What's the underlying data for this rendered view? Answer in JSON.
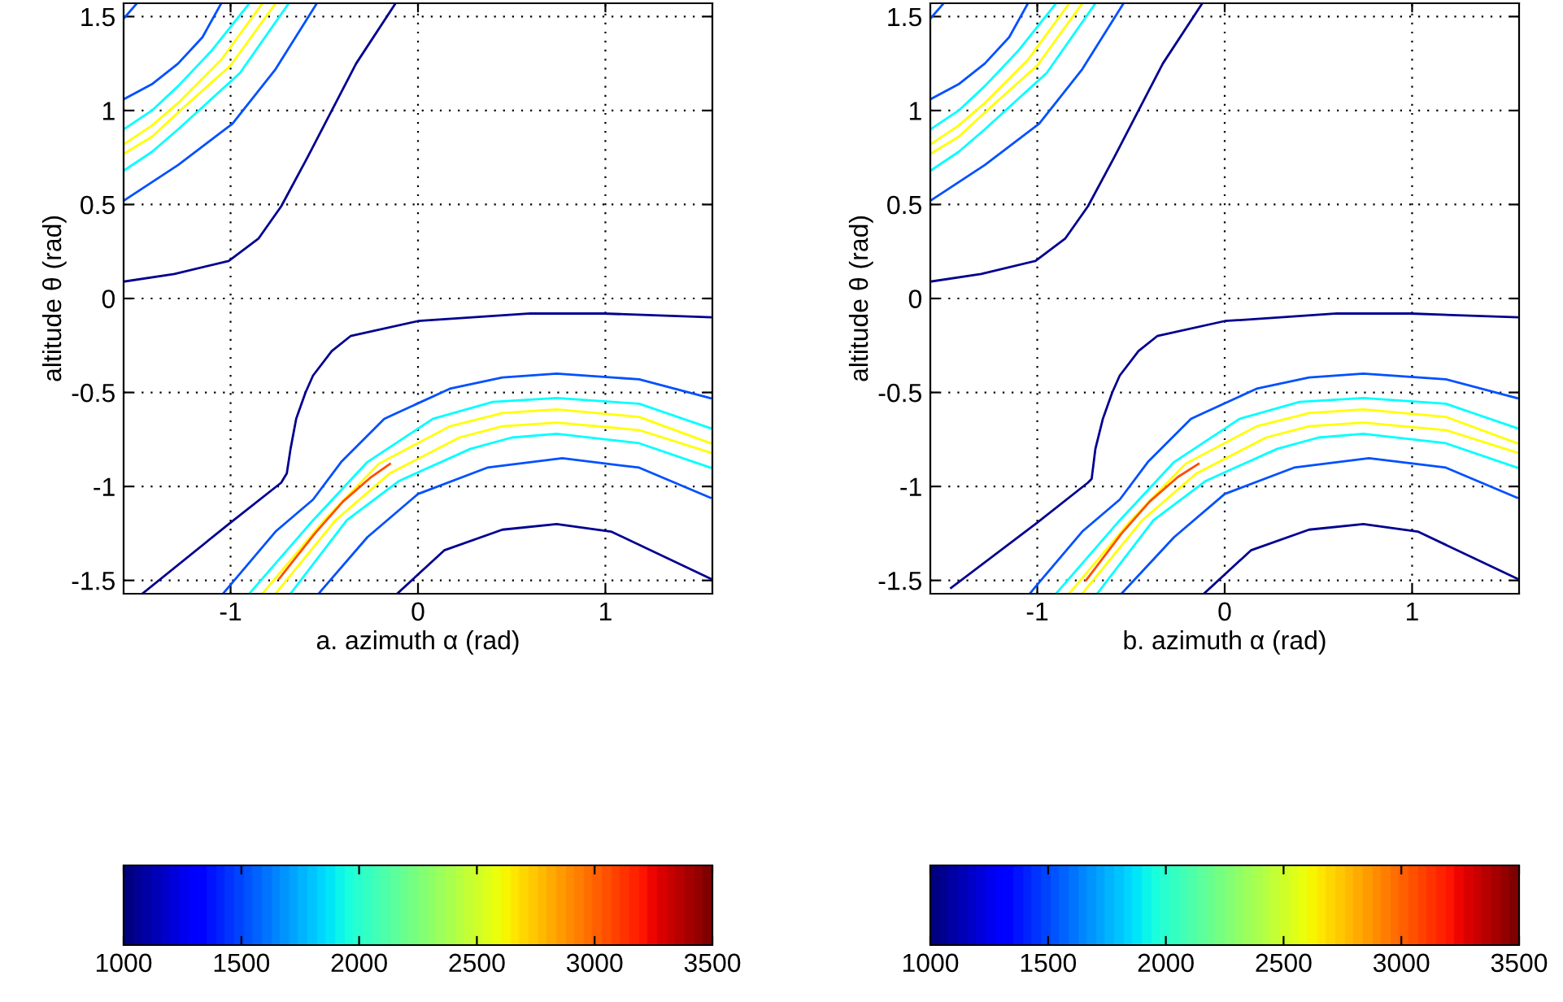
{
  "chart_data": [
    {
      "type": "line",
      "xlabel": "a. azimuth α (rad)",
      "ylabel": "altitude θ (rad)",
      "xlim": [
        -1.5708,
        1.5708
      ],
      "ylim": [
        -1.5708,
        1.5708
      ],
      "xticks": [
        -1,
        0,
        1
      ],
      "yticks": [
        -1.5,
        -1,
        -0.5,
        0,
        0.5,
        1,
        1.5
      ],
      "grid": true,
      "clim": [
        1000,
        3500
      ],
      "cticks": [
        1000,
        1500,
        2000,
        2500,
        3000,
        3500
      ],
      "series": [
        {
          "color": "#00008f",
          "x": [
            -1.57,
            -1.3,
            -1.01,
            -0.85,
            -0.73,
            -0.59,
            -0.46,
            -0.33,
            -0.12
          ],
          "values": [
            0.09,
            0.13,
            0.2,
            0.32,
            0.49,
            0.75,
            1.0,
            1.25,
            1.57
          ]
        },
        {
          "color": "#0050ff",
          "x": [
            -1.57,
            -1.5
          ],
          "values": [
            1.49,
            1.57
          ]
        },
        {
          "color": "#0050ff",
          "x": [
            -1.57,
            -1.42,
            -1.28,
            -1.15,
            -1.05
          ],
          "values": [
            1.06,
            1.14,
            1.25,
            1.39,
            1.57
          ]
        },
        {
          "color": "#00ffff",
          "x": [
            -1.57,
            -1.42,
            -1.28,
            -1.1,
            -0.9
          ],
          "values": [
            0.9,
            1.0,
            1.13,
            1.32,
            1.57
          ]
        },
        {
          "color": "#ffff00",
          "x": [
            -1.57,
            -1.42,
            -1.28,
            -1.05,
            -0.83
          ],
          "values": [
            0.82,
            0.92,
            1.04,
            1.27,
            1.57
          ]
        },
        {
          "color": "#ffff00",
          "x": [
            -1.57,
            -1.42,
            -1.28,
            -1.0,
            -0.76
          ],
          "values": [
            0.77,
            0.86,
            0.99,
            1.24,
            1.57
          ]
        },
        {
          "color": "#00ffff",
          "x": [
            -1.57,
            -1.42,
            -1.28,
            -0.95,
            -0.69
          ],
          "values": [
            0.68,
            0.78,
            0.9,
            1.2,
            1.57
          ]
        },
        {
          "color": "#0050ff",
          "x": [
            -1.57,
            -1.28,
            -0.99,
            -0.76,
            -0.54
          ],
          "values": [
            0.52,
            0.71,
            0.93,
            1.22,
            1.57
          ]
        },
        {
          "color": "#00008f",
          "x": [
            -1.47,
            -1.01,
            -0.73,
            -0.7,
            -0.68,
            -0.65,
            -0.6,
            -0.56,
            -0.46,
            -0.36,
            0,
            0.6,
            0.99,
            1.56
          ],
          "values": [
            -1.57,
            -1.2,
            -0.98,
            -0.93,
            -0.8,
            -0.64,
            -0.5,
            -0.41,
            -0.28,
            -0.2,
            -0.12,
            -0.08,
            -0.08,
            -0.1
          ]
        },
        {
          "color": "#0050ff",
          "x": [
            -1.04,
            -0.76,
            -0.56,
            -0.41,
            -0.18,
            0.17,
            0.45,
            0.74,
            1.18,
            1.56
          ],
          "values": [
            -1.57,
            -1.24,
            -1.07,
            -0.87,
            -0.64,
            -0.48,
            -0.42,
            -0.4,
            -0.43,
            -0.53
          ]
        },
        {
          "color": "#00ffff",
          "x": [
            -0.9,
            -0.56,
            -0.27,
            0.08,
            0.4,
            0.74,
            1.18,
            1.56
          ],
          "values": [
            -1.57,
            -1.18,
            -0.87,
            -0.64,
            -0.55,
            -0.53,
            -0.56,
            -0.69
          ]
        },
        {
          "color": "#ffff00",
          "x": [
            -0.83,
            -0.5,
            -0.21,
            0.17,
            0.45,
            0.74,
            1.18,
            1.56
          ],
          "values": [
            -1.57,
            -1.18,
            -0.88,
            -0.68,
            -0.61,
            -0.59,
            -0.63,
            -0.77
          ]
        },
        {
          "color": "#ffff00",
          "x": [
            -0.76,
            -0.44,
            -0.15,
            0.22,
            0.45,
            0.74,
            1.18,
            1.56
          ],
          "values": [
            -1.57,
            -1.18,
            -0.93,
            -0.74,
            -0.68,
            -0.66,
            -0.7,
            -0.82
          ]
        },
        {
          "color": "#00ffff",
          "x": [
            -0.68,
            -0.38,
            -0.1,
            0.28,
            0.5,
            0.74,
            1.18,
            1.56
          ],
          "values": [
            -1.57,
            -1.18,
            -0.97,
            -0.8,
            -0.74,
            -0.72,
            -0.77,
            -0.9
          ]
        },
        {
          "color": "#0050ff",
          "x": [
            -0.53,
            -0.27,
            0,
            0.37,
            0.77,
            1.18,
            1.56
          ],
          "values": [
            -1.57,
            -1.27,
            -1.04,
            -0.9,
            -0.85,
            -0.9,
            -1.06
          ]
        },
        {
          "color": "#00008f",
          "x": [
            -0.11,
            0.14,
            0.45,
            0.74,
            1.03,
            1.56
          ],
          "values": [
            -1.57,
            -1.34,
            -1.23,
            -1.2,
            -1.24,
            -1.49
          ]
        },
        {
          "color": "#ff4d00",
          "x": [
            -0.74,
            -0.55,
            -0.4,
            -0.25,
            -0.15
          ],
          "values": [
            -1.49,
            -1.25,
            -1.08,
            -0.95,
            -0.88
          ]
        }
      ]
    },
    {
      "type": "line",
      "xlabel": "b. azimuth α (rad)",
      "ylabel": "altitude θ (rad)",
      "xlim": [
        -1.5708,
        1.5708
      ],
      "ylim": [
        -1.5708,
        1.5708
      ],
      "xticks": [
        -1,
        0,
        1
      ],
      "yticks": [
        -1.5,
        -1,
        -0.5,
        0,
        0.5,
        1,
        1.5
      ],
      "grid": true,
      "clim": [
        1000,
        3500
      ],
      "cticks": [
        1000,
        1500,
        2000,
        2500,
        3000,
        3500
      ],
      "series": [
        {
          "color": "#00008f",
          "x": [
            -1.57,
            -1.3,
            -1.01,
            -0.85,
            -0.73,
            -0.59,
            -0.46,
            -0.33,
            -0.12
          ],
          "values": [
            0.09,
            0.13,
            0.2,
            0.32,
            0.49,
            0.75,
            1.0,
            1.25,
            1.57
          ]
        },
        {
          "color": "#0050ff",
          "x": [
            -1.57,
            -1.5
          ],
          "values": [
            1.49,
            1.57
          ]
        },
        {
          "color": "#0050ff",
          "x": [
            -1.57,
            -1.42,
            -1.28,
            -1.15,
            -1.05
          ],
          "values": [
            1.06,
            1.14,
            1.25,
            1.39,
            1.57
          ]
        },
        {
          "color": "#00ffff",
          "x": [
            -1.57,
            -1.42,
            -1.28,
            -1.1,
            -0.9
          ],
          "values": [
            0.9,
            1.0,
            1.13,
            1.32,
            1.57
          ]
        },
        {
          "color": "#ffff00",
          "x": [
            -1.57,
            -1.42,
            -1.28,
            -1.05,
            -0.83
          ],
          "values": [
            0.82,
            0.92,
            1.04,
            1.27,
            1.57
          ]
        },
        {
          "color": "#ffff00",
          "x": [
            -1.57,
            -1.42,
            -1.28,
            -1.0,
            -0.76
          ],
          "values": [
            0.77,
            0.86,
            0.99,
            1.24,
            1.57
          ]
        },
        {
          "color": "#00ffff",
          "x": [
            -1.57,
            -1.42,
            -1.28,
            -0.95,
            -0.69
          ],
          "values": [
            0.68,
            0.78,
            0.9,
            1.2,
            1.57
          ]
        },
        {
          "color": "#0050ff",
          "x": [
            -1.57,
            -1.28,
            -0.99,
            -0.76,
            -0.54
          ],
          "values": [
            0.52,
            0.71,
            0.93,
            1.22,
            1.57
          ]
        },
        {
          "color": "#00008f",
          "x": [
            -1.46,
            -1.01,
            -0.73,
            -0.71,
            -0.69,
            -0.65,
            -0.6,
            -0.56,
            -0.46,
            -0.36,
            0,
            0.6,
            0.99,
            1.56
          ],
          "values": [
            -1.54,
            -1.2,
            -0.98,
            -0.96,
            -0.8,
            -0.64,
            -0.5,
            -0.41,
            -0.28,
            -0.2,
            -0.12,
            -0.08,
            -0.08,
            -0.1
          ]
        },
        {
          "color": "#0050ff",
          "x": [
            -1.04,
            -0.76,
            -0.56,
            -0.41,
            -0.18,
            0.17,
            0.45,
            0.74,
            1.18,
            1.56
          ],
          "values": [
            -1.57,
            -1.24,
            -1.07,
            -0.87,
            -0.64,
            -0.48,
            -0.42,
            -0.4,
            -0.43,
            -0.53
          ]
        },
        {
          "color": "#00ffff",
          "x": [
            -0.9,
            -0.56,
            -0.27,
            0.08,
            0.4,
            0.74,
            1.18,
            1.56
          ],
          "values": [
            -1.57,
            -1.18,
            -0.87,
            -0.64,
            -0.55,
            -0.53,
            -0.56,
            -0.69
          ]
        },
        {
          "color": "#ffff00",
          "x": [
            -0.83,
            -0.5,
            -0.21,
            0.17,
            0.45,
            0.74,
            1.18,
            1.56
          ],
          "values": [
            -1.57,
            -1.18,
            -0.88,
            -0.68,
            -0.61,
            -0.59,
            -0.63,
            -0.77
          ]
        },
        {
          "color": "#ffff00",
          "x": [
            -0.76,
            -0.44,
            -0.15,
            0.22,
            0.45,
            0.74,
            1.18,
            1.56
          ],
          "values": [
            -1.57,
            -1.18,
            -0.93,
            -0.74,
            -0.68,
            -0.66,
            -0.7,
            -0.82
          ]
        },
        {
          "color": "#00ffff",
          "x": [
            -0.68,
            -0.38,
            -0.1,
            0.28,
            0.5,
            0.74,
            1.18,
            1.56
          ],
          "values": [
            -1.57,
            -1.18,
            -0.97,
            -0.8,
            -0.74,
            -0.72,
            -0.77,
            -0.9
          ]
        },
        {
          "color": "#0050ff",
          "x": [
            -0.55,
            -0.27,
            0,
            0.37,
            0.77,
            1.18,
            1.56
          ],
          "values": [
            -1.57,
            -1.27,
            -1.04,
            -0.9,
            -0.85,
            -0.9,
            -1.06
          ]
        },
        {
          "color": "#00008f",
          "x": [
            -0.11,
            0.14,
            0.45,
            0.74,
            1.03,
            1.56
          ],
          "values": [
            -1.57,
            -1.34,
            -1.23,
            -1.2,
            -1.24,
            -1.49
          ]
        },
        {
          "color": "#ff4d00",
          "x": [
            -0.74,
            -0.55,
            -0.4,
            -0.25,
            -0.14
          ],
          "values": [
            -1.5,
            -1.25,
            -1.08,
            -0.95,
            -0.88
          ]
        }
      ]
    }
  ]
}
